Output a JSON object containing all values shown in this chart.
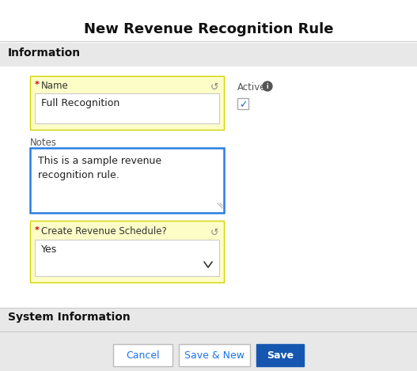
{
  "title": "New Revenue Recognition Rule",
  "title_fontsize": 13,
  "title_color": "#111111",
  "bg_color": "#ffffff",
  "section_bg": "#e8e8e8",
  "content_bg": "#ffffff",
  "section_label_information": "Information",
  "section_label_system": "System Information",
  "field_bg_yellow": "#fdfdc8",
  "field_border_yellow": "#d4d400",
  "name_label": "Name",
  "name_value": "Full Recognition",
  "notes_label": "Notes",
  "notes_line1": "This is a sample revenue",
  "notes_line2": "recognition rule.",
  "notes_border_color": "#2a7de1",
  "schedule_label": "Create Revenue Schedule?",
  "schedule_value": "Yes",
  "active_label": "Active",
  "required_color": "#cc0000",
  "input_bg": "#ffffff",
  "input_border": "#cccccc",
  "text_color": "#222222",
  "label_color": "#333333",
  "gray_label_color": "#555555",
  "btn_cancel_label": "Cancel",
  "btn_savenew_label": "Save & New",
  "btn_save_label": "Save",
  "btn_cancel_bg": "#ffffff",
  "btn_cancel_border": "#bbbbbb",
  "btn_cancel_text": "#1a73e8",
  "btn_savenew_bg": "#ffffff",
  "btn_savenew_border": "#bbbbbb",
  "btn_savenew_text": "#1a73e8",
  "btn_save_bg": "#1557b0",
  "btn_save_text": "#ffffff",
  "check_color": "#1a6cbf",
  "undo_color": "#888888",
  "resize_color": "#aaaaaa",
  "divider_color": "#cccccc"
}
